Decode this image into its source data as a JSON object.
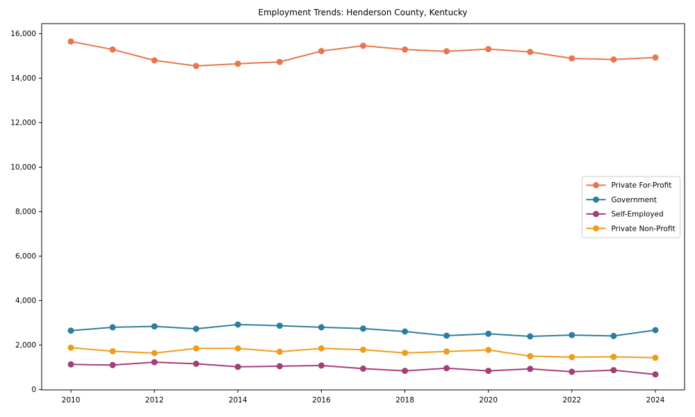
{
  "figure": {
    "background": "#ffffff"
  },
  "chart_data": {
    "type": "line",
    "title": "Employment Trends: Henderson County, Kentucky",
    "xlabel": "",
    "ylabel": "",
    "grid": false,
    "legend_position": "right-middle",
    "x": [
      2010,
      2011,
      2012,
      2013,
      2014,
      2015,
      2016,
      2017,
      2018,
      2019,
      2020,
      2021,
      2022,
      2023,
      2024
    ],
    "series": [
      {
        "name": "Private For-Profit",
        "color": "#e8764a",
        "values": [
          15650,
          15290,
          14800,
          14550,
          14650,
          14730,
          15220,
          15460,
          15290,
          15210,
          15310,
          15180,
          14890,
          14840,
          14930
        ]
      },
      {
        "name": "Government",
        "color": "#2d7e9e",
        "values": [
          2650,
          2800,
          2840,
          2730,
          2920,
          2870,
          2800,
          2740,
          2610,
          2420,
          2510,
          2390,
          2450,
          2410,
          2670
        ]
      },
      {
        "name": "Self-Employed",
        "color": "#a63d7a",
        "values": [
          1130,
          1100,
          1230,
          1160,
          1020,
          1050,
          1080,
          940,
          840,
          960,
          840,
          930,
          800,
          870,
          680
        ]
      },
      {
        "name": "Private Non-Profit",
        "color": "#f09b1c",
        "values": [
          1880,
          1720,
          1640,
          1850,
          1850,
          1700,
          1850,
          1790,
          1650,
          1710,
          1780,
          1500,
          1460,
          1470,
          1430
        ]
      }
    ],
    "xlim": [
      2009.3,
      2024.7
    ],
    "ylim": [
      -16,
      16453
    ],
    "x_ticks": {
      "values": [
        2010,
        2012,
        2014,
        2016,
        2018,
        2020,
        2022,
        2024
      ],
      "labels": [
        "2010",
        "2012",
        "2014",
        "2016",
        "2018",
        "2020",
        "2022",
        "2024"
      ]
    },
    "y_ticks": {
      "values": [
        0,
        2000,
        4000,
        6000,
        8000,
        10000,
        12000,
        14000,
        16000
      ],
      "labels": [
        "0",
        "2,000",
        "4,000",
        "6,000",
        "8,000",
        "10,000",
        "12,000",
        "14,000",
        "16,000"
      ]
    }
  }
}
